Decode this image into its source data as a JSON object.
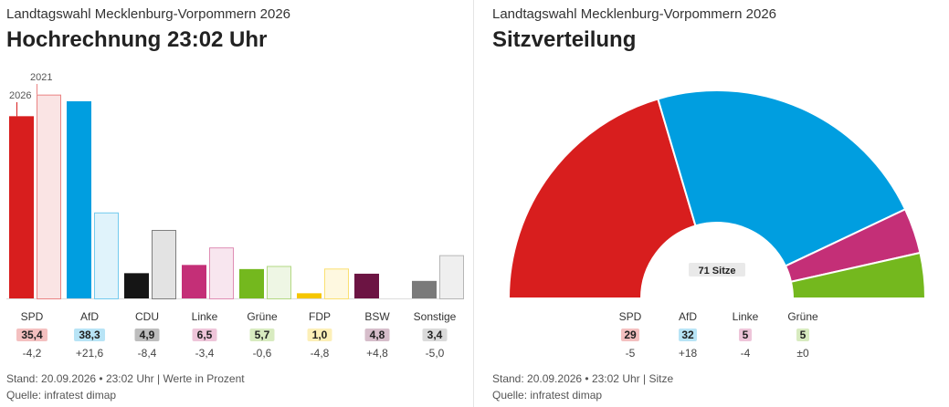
{
  "colors": {
    "SPD": "#d81e1e",
    "AfD": "#009ee0",
    "CDU": "#151515",
    "Linke": "#c42f77",
    "Grüne": "#74b81e",
    "FDP": "#f5c600",
    "BSW": "#6c1443",
    "Sonstige": "#7a7a7a"
  },
  "left": {
    "subtitle": "Landtagswahl Mecklenburg-Vorpommern 2026",
    "title": "Hochrechnung 23:02 Uhr",
    "legend_2026": "2026",
    "legend_2021": "2021",
    "footer_stand": "Stand: 20.09.2026 • 23:02 Uhr | Werte in Prozent",
    "footer_source": "Quelle: infratest dimap"
  },
  "right": {
    "subtitle": "Landtagswahl Mecklenburg-Vorpommern 2026",
    "title": "Sitzverteilung",
    "center_label": "71 Sitze",
    "footer_stand": "Stand: 20.09.2026 • 23:02 Uhr | Sitze",
    "footer_source": "Quelle: infratest dimap"
  },
  "chart_data": [
    {
      "type": "bar",
      "title": "Hochrechnung 23:02 Uhr",
      "categories": [
        "SPD",
        "AfD",
        "CDU",
        "Linke",
        "Grüne",
        "FDP",
        "BSW",
        "Sonstige"
      ],
      "series": [
        {
          "name": "2026",
          "values": [
            35.4,
            38.3,
            4.9,
            6.5,
            5.7,
            1.0,
            4.8,
            3.4
          ]
        },
        {
          "name": "2021",
          "values": [
            39.6,
            16.7,
            13.3,
            9.9,
            6.3,
            5.8,
            0,
            8.4
          ]
        }
      ],
      "value_labels": [
        "35,4",
        "38,3",
        "4,9",
        "6,5",
        "5,7",
        "1,0",
        "4,8",
        "3,4"
      ],
      "diff_labels": [
        "-4,2",
        "+21,6",
        "-8,4",
        "-3,4",
        "-0,6",
        "-4,8",
        "+4,8",
        "-5,0"
      ],
      "ylim": [
        0,
        40
      ]
    },
    {
      "type": "pie",
      "title": "Sitzverteilung",
      "categories": [
        "SPD",
        "AfD",
        "Linke",
        "Grüne"
      ],
      "values": [
        29,
        32,
        5,
        5
      ],
      "value_labels": [
        "29",
        "32",
        "5",
        "5"
      ],
      "diff_labels": [
        "-5",
        "+18",
        "-4",
        "±0"
      ],
      "total": 71
    }
  ]
}
